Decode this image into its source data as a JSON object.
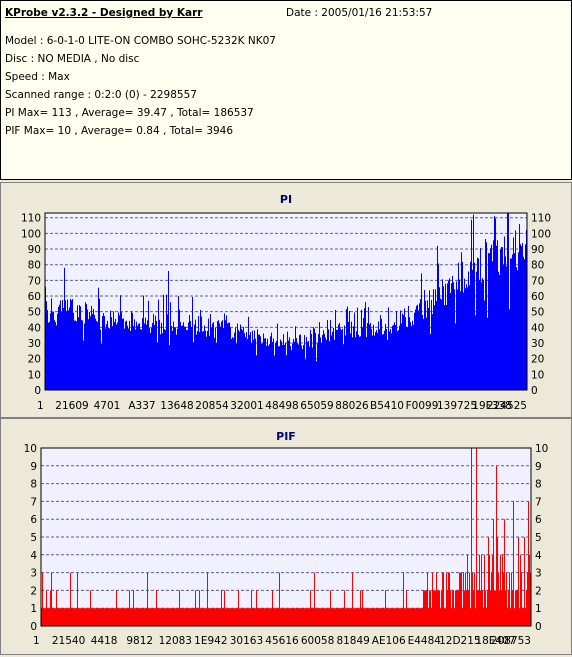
{
  "info": {
    "app_title": "KProbe v2.3.2 - Designed by Karr",
    "date": "Date : 2005/01/16 21:53:57",
    "model": "Model : 6-0-1-0 LITE-ON COMBO SOHC-5232K NK07",
    "disc": "Disc : NO MEDIA , No disc",
    "speed": "Speed : Max",
    "scanned_range": "Scanned range : 0:2:0 (0) - 2298557",
    "pi_stats": "PI Max= 113 , Average= 39.47 , Total= 186537",
    "pif_stats": "PIF Max= 10 , Average= 0.84 , Total= 3946"
  },
  "colors": {
    "background": "#ece9d8",
    "info_background": "#fffff0",
    "plot_background": "#f0f0ff",
    "gridline": "#5a5aa8",
    "pi_fill": "#0000ff",
    "pif_fill": "#ff0000",
    "title": "#000080"
  },
  "chart_data": [
    {
      "type": "bar",
      "title": "PI",
      "ylim": [
        0,
        113
      ],
      "y_ticks": [
        0,
        10,
        20,
        30,
        40,
        50,
        60,
        70,
        80,
        90,
        100,
        110
      ],
      "x_tick_labels": [
        "1",
        "21609",
        "4701",
        "A337",
        "13648",
        "20854",
        "32001",
        "48498",
        "65059",
        "88026",
        "B5410",
        "F0099",
        "139725",
        "19F338",
        "224525"
      ],
      "grid": true,
      "max": 113,
      "envelope": {
        "x": [
          0,
          0.04,
          0.1,
          0.2,
          0.3,
          0.38,
          0.46,
          0.52,
          0.57,
          0.6,
          0.65,
          0.7,
          0.75,
          0.8,
          0.85,
          0.9,
          0.94,
          0.97,
          1.0
        ],
        "y": [
          58,
          62,
          54,
          50,
          48,
          45,
          37,
          35,
          38,
          41,
          46,
          48,
          53,
          65,
          80,
          92,
          98,
          104,
          108
        ]
      },
      "peaks": [
        {
          "x": 0.04,
          "y": 78
        },
        {
          "x": 0.255,
          "y": 76
        },
        {
          "x": 0.815,
          "y": 92
        },
        {
          "x": 0.89,
          "y": 112
        },
        {
          "x": 0.96,
          "y": 113
        }
      ]
    },
    {
      "type": "bar",
      "title": "PIF",
      "ylim": [
        0,
        10
      ],
      "y_ticks": [
        0,
        1,
        2,
        3,
        4,
        5,
        6,
        7,
        8,
        9,
        10
      ],
      "x_tick_labels": [
        "1",
        "21540",
        "4418",
        "9812",
        "12083",
        "1E942",
        "30163",
        "45616",
        "60058",
        "81849",
        "AE106",
        "E4484",
        "12D215",
        "18E407",
        "208753"
      ],
      "grid": true,
      "max": 10,
      "baseline_level": 1,
      "high_region_start": 0.78,
      "spikes": [
        {
          "x": 0.003,
          "y": 3
        },
        {
          "x": 0.02,
          "y": 3
        },
        {
          "x": 0.06,
          "y": 3
        },
        {
          "x": 0.1,
          "y": 2
        },
        {
          "x": 0.18,
          "y": 2
        },
        {
          "x": 0.34,
          "y": 3
        },
        {
          "x": 0.44,
          "y": 2
        },
        {
          "x": 0.55,
          "y": 2
        },
        {
          "x": 0.62,
          "y": 2
        },
        {
          "x": 0.74,
          "y": 3
        },
        {
          "x": 0.88,
          "y": 10
        },
        {
          "x": 0.89,
          "y": 10
        },
        {
          "x": 0.93,
          "y": 9
        }
      ]
    }
  ]
}
